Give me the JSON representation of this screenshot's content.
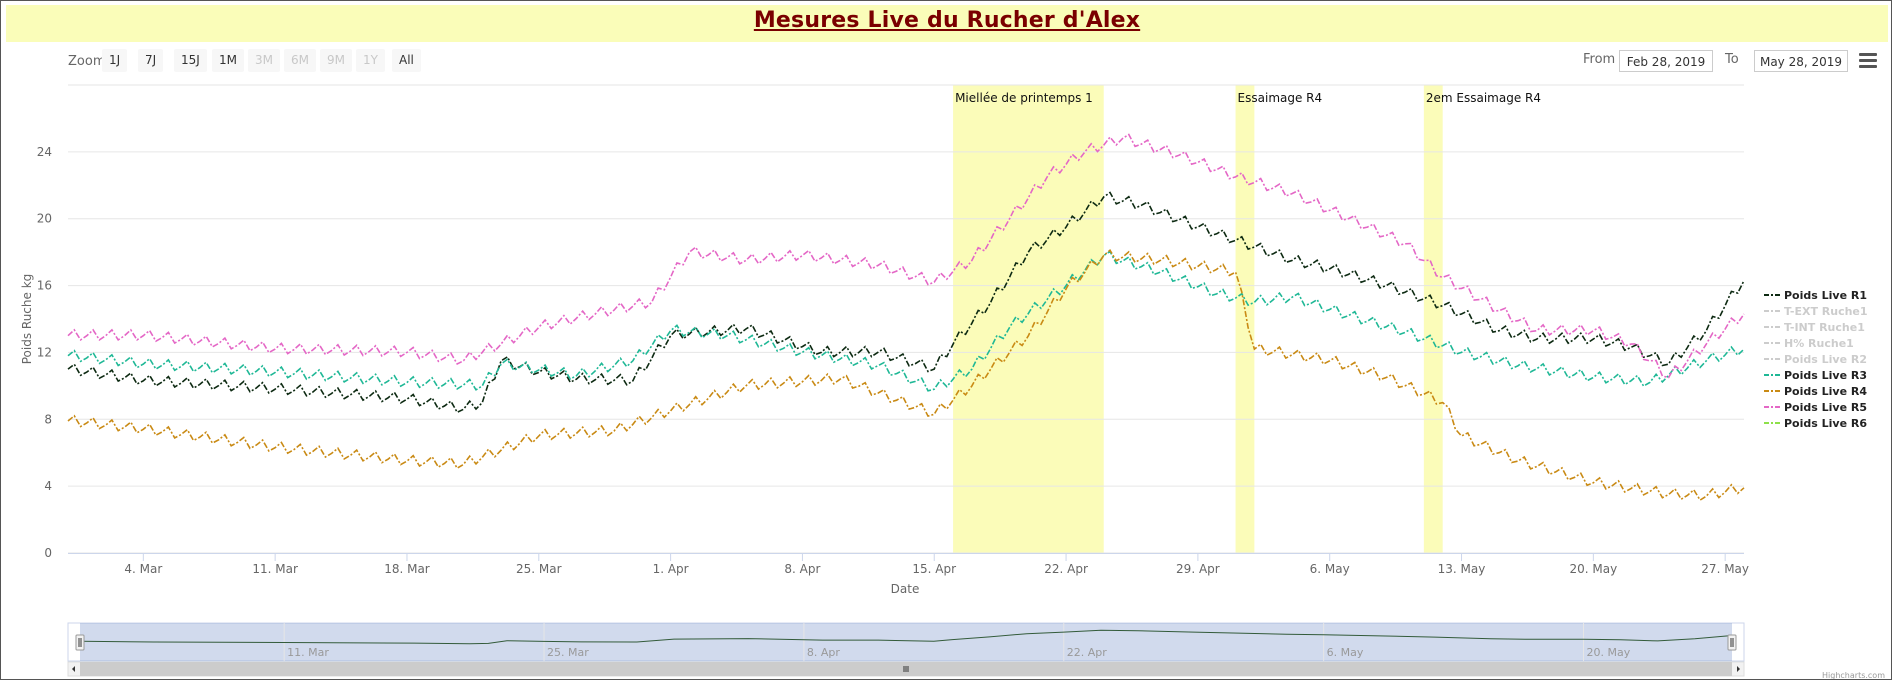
{
  "title": "Mesures Live du Rucher d'Alex",
  "toolbar": {
    "zoom_label": "Zoom",
    "zoom_buttons": [
      {
        "label": "1J",
        "enabled": true
      },
      {
        "label": "7J",
        "enabled": true
      },
      {
        "label": "15J",
        "enabled": true
      },
      {
        "label": "1M",
        "enabled": true
      },
      {
        "label": "3M",
        "enabled": false
      },
      {
        "label": "6M",
        "enabled": false
      },
      {
        "label": "9M",
        "enabled": false
      },
      {
        "label": "1Y",
        "enabled": false
      },
      {
        "label": "All",
        "enabled": true
      }
    ],
    "from_label": "From",
    "from_value": "Feb 28, 2019",
    "to_label": "To",
    "to_value": "May 28, 2019",
    "menu_icon": "hamburger-menu-icon"
  },
  "chart_data": {
    "type": "line",
    "xlabel": "Date",
    "ylabel": "Poids Ruche kg",
    "x_range": [
      "2019-02-28",
      "2019-05-28"
    ],
    "ylim": [
      0,
      28
    ],
    "yticks": [
      0,
      4,
      8,
      12,
      16,
      20,
      24
    ],
    "x_ticks": [
      {
        "date": "2019-03-04",
        "label": "4. Mar"
      },
      {
        "date": "2019-03-11",
        "label": "11. Mar"
      },
      {
        "date": "2019-03-18",
        "label": "18. Mar"
      },
      {
        "date": "2019-03-25",
        "label": "25. Mar"
      },
      {
        "date": "2019-04-01",
        "label": "1. Apr"
      },
      {
        "date": "2019-04-08",
        "label": "8. Apr"
      },
      {
        "date": "2019-04-15",
        "label": "15. Apr"
      },
      {
        "date": "2019-04-22",
        "label": "22. Apr"
      },
      {
        "date": "2019-04-29",
        "label": "29. Apr"
      },
      {
        "date": "2019-05-06",
        "label": "6. May"
      },
      {
        "date": "2019-05-13",
        "label": "13. May"
      },
      {
        "date": "2019-05-20",
        "label": "20. May"
      },
      {
        "date": "2019-05-27",
        "label": "27. May"
      }
    ],
    "grid": true,
    "legend_position": "right",
    "plot_bands": [
      {
        "from": "2019-04-16",
        "to": "2019-04-24",
        "label": "Miellée de printemps 1",
        "color": "#fbfcb9"
      },
      {
        "from": "2019-05-01",
        "to": "2019-05-02",
        "label": "Essaimage R4",
        "color": "#fbfcb9"
      },
      {
        "from": "2019-05-11",
        "to": "2019-05-12",
        "label": "2em Essaimage R4",
        "color": "#fbfcb9"
      }
    ],
    "series": [
      {
        "name": "Poids Live R1",
        "color": "#0d2a12",
        "visible": true,
        "points": [
          [
            "2019-02-28",
            11.0
          ],
          [
            "2019-03-04",
            10.3
          ],
          [
            "2019-03-11",
            9.8
          ],
          [
            "2019-03-18",
            9.2
          ],
          [
            "2019-03-21",
            8.6
          ],
          [
            "2019-03-22",
            9.0
          ],
          [
            "2019-03-23",
            11.5
          ],
          [
            "2019-03-25",
            10.8
          ],
          [
            "2019-03-27",
            10.4
          ],
          [
            "2019-03-30",
            10.3
          ],
          [
            "2019-04-01",
            13.0
          ],
          [
            "2019-04-05",
            13.4
          ],
          [
            "2019-04-09",
            12.0
          ],
          [
            "2019-04-12",
            12.0
          ],
          [
            "2019-04-15",
            11.0
          ],
          [
            "2019-04-16",
            12.5
          ],
          [
            "2019-04-18",
            15.0
          ],
          [
            "2019-04-20",
            18.0
          ],
          [
            "2019-04-22",
            19.5
          ],
          [
            "2019-04-24",
            21.3
          ],
          [
            "2019-04-26",
            20.8
          ],
          [
            "2019-04-29",
            19.5
          ],
          [
            "2019-05-02",
            18.3
          ],
          [
            "2019-05-04",
            17.5
          ],
          [
            "2019-05-06",
            17.0
          ],
          [
            "2019-05-09",
            16.0
          ],
          [
            "2019-05-12",
            14.8
          ],
          [
            "2019-05-15",
            13.3
          ],
          [
            "2019-05-17",
            12.8
          ],
          [
            "2019-05-20",
            12.8
          ],
          [
            "2019-05-22",
            12.3
          ],
          [
            "2019-05-24",
            11.3
          ],
          [
            "2019-05-26",
            13.3
          ],
          [
            "2019-05-28",
            16.3
          ]
        ]
      },
      {
        "name": "T-EXT Ruche1",
        "color": "#cccccc",
        "visible": false,
        "points": []
      },
      {
        "name": "T-INT Ruche1",
        "color": "#cccccc",
        "visible": false,
        "points": []
      },
      {
        "name": "H% Ruche1",
        "color": "#cccccc",
        "visible": false,
        "points": []
      },
      {
        "name": "Poids Live R2",
        "color": "#cccccc",
        "visible": false,
        "points": []
      },
      {
        "name": "Poids Live R3",
        "color": "#1fb896",
        "visible": true,
        "points": [
          [
            "2019-02-28",
            11.8
          ],
          [
            "2019-03-04",
            11.3
          ],
          [
            "2019-03-11",
            10.8
          ],
          [
            "2019-03-18",
            10.2
          ],
          [
            "2019-03-22",
            10.0
          ],
          [
            "2019-03-23",
            11.3
          ],
          [
            "2019-03-27",
            10.6
          ],
          [
            "2019-03-30",
            11.5
          ],
          [
            "2019-04-01",
            13.3
          ],
          [
            "2019-04-04",
            13.0
          ],
          [
            "2019-04-08",
            12.0
          ],
          [
            "2019-04-12",
            11.2
          ],
          [
            "2019-04-15",
            9.8
          ],
          [
            "2019-04-17",
            11.0
          ],
          [
            "2019-04-19",
            13.5
          ],
          [
            "2019-04-22",
            16.0
          ],
          [
            "2019-04-24",
            17.8
          ],
          [
            "2019-04-27",
            16.8
          ],
          [
            "2019-04-30",
            15.5
          ],
          [
            "2019-05-02",
            15.0
          ],
          [
            "2019-05-04",
            15.3
          ],
          [
            "2019-05-07",
            14.2
          ],
          [
            "2019-05-10",
            13.2
          ],
          [
            "2019-05-13",
            12.0
          ],
          [
            "2019-05-16",
            11.2
          ],
          [
            "2019-05-20",
            10.5
          ],
          [
            "2019-05-23",
            10.2
          ],
          [
            "2019-05-26",
            11.5
          ],
          [
            "2019-05-28",
            12.2
          ]
        ]
      },
      {
        "name": "Poids Live R4",
        "color": "#c98a14",
        "visible": true,
        "points": [
          [
            "2019-02-28",
            7.9
          ],
          [
            "2019-03-04",
            7.4
          ],
          [
            "2019-03-11",
            6.3
          ],
          [
            "2019-03-18",
            5.5
          ],
          [
            "2019-03-21",
            5.3
          ],
          [
            "2019-03-25",
            7.0
          ],
          [
            "2019-03-29",
            7.3
          ],
          [
            "2019-04-01",
            8.5
          ],
          [
            "2019-04-05",
            10.0
          ],
          [
            "2019-04-10",
            10.4
          ],
          [
            "2019-04-15",
            8.3
          ],
          [
            "2019-04-17",
            10.0
          ],
          [
            "2019-04-20",
            13.0
          ],
          [
            "2019-04-22",
            15.8
          ],
          [
            "2019-04-24",
            17.8
          ],
          [
            "2019-04-27",
            17.5
          ],
          [
            "2019-05-01",
            16.8
          ],
          [
            "2019-05-02",
            12.2
          ],
          [
            "2019-05-06",
            11.5
          ],
          [
            "2019-05-09",
            10.5
          ],
          [
            "2019-05-12",
            9.0
          ],
          [
            "2019-05-13",
            7.0
          ],
          [
            "2019-05-16",
            5.5
          ],
          [
            "2019-05-20",
            4.2
          ],
          [
            "2019-05-24",
            3.5
          ],
          [
            "2019-05-26",
            3.4
          ],
          [
            "2019-05-28",
            3.9
          ]
        ]
      },
      {
        "name": "Poids Live R5",
        "color": "#e467c6",
        "visible": true,
        "points": [
          [
            "2019-02-28",
            13.0
          ],
          [
            "2019-03-04",
            13.0
          ],
          [
            "2019-03-11",
            12.2
          ],
          [
            "2019-03-18",
            12.0
          ],
          [
            "2019-03-21",
            11.5
          ],
          [
            "2019-03-25",
            13.5
          ],
          [
            "2019-03-28",
            14.3
          ],
          [
            "2019-03-31",
            15.0
          ],
          [
            "2019-04-02",
            18.0
          ],
          [
            "2019-04-05",
            17.5
          ],
          [
            "2019-04-08",
            17.8
          ],
          [
            "2019-04-12",
            17.2
          ],
          [
            "2019-04-15",
            16.2
          ],
          [
            "2019-04-17",
            17.5
          ],
          [
            "2019-04-19",
            20.0
          ],
          [
            "2019-04-21",
            22.5
          ],
          [
            "2019-04-23",
            24.0
          ],
          [
            "2019-04-25",
            24.8
          ],
          [
            "2019-04-28",
            23.8
          ],
          [
            "2019-05-01",
            22.5
          ],
          [
            "2019-05-04",
            21.5
          ],
          [
            "2019-05-07",
            20.0
          ],
          [
            "2019-05-10",
            18.5
          ],
          [
            "2019-05-12",
            16.5
          ],
          [
            "2019-05-15",
            14.5
          ],
          [
            "2019-05-17",
            13.3
          ],
          [
            "2019-05-20",
            13.3
          ],
          [
            "2019-05-22",
            12.5
          ],
          [
            "2019-05-24",
            10.5
          ],
          [
            "2019-05-26",
            12.5
          ],
          [
            "2019-05-28",
            14.3
          ]
        ]
      },
      {
        "name": "Poids Live R6",
        "color": "#8ee04a",
        "visible": true,
        "points": []
      }
    ]
  },
  "navigator": {
    "tick_labels": [
      "11. Mar",
      "25. Mar",
      "8. Apr",
      "22. Apr",
      "6. May",
      "20. May"
    ]
  },
  "credits": "Highcharts.com"
}
